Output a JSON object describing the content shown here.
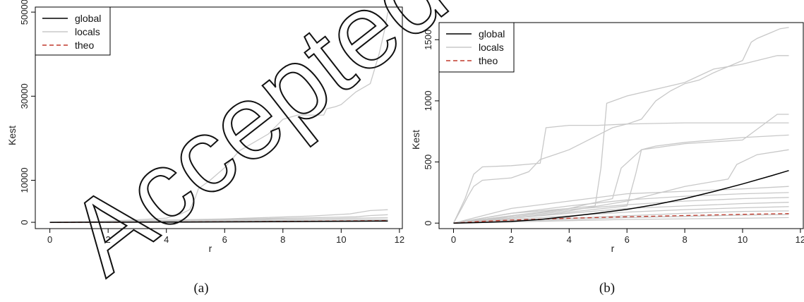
{
  "watermark": "Accepted",
  "panels": [
    {
      "caption": "(a)"
    },
    {
      "caption": "(b)"
    }
  ],
  "chart_data": [
    {
      "type": "line",
      "xlabel": "r",
      "ylabel": "Kest",
      "xlim": [
        -0.5,
        12.1
      ],
      "ylim": [
        -1500,
        51200
      ],
      "xticks": [
        0,
        2,
        4,
        6,
        8,
        10,
        12
      ],
      "yticks": [
        0,
        10000,
        30000,
        50000
      ],
      "legend": {
        "position": "top-left",
        "entries": [
          "global",
          "locals",
          "theo"
        ]
      },
      "colors": {
        "global": "#000000",
        "locals": "#c8c8c8",
        "theo": "#c0392b"
      },
      "series": [
        {
          "name": "global",
          "style": "solid",
          "x": [
            0,
            2,
            4,
            6,
            8,
            10,
            11.6
          ],
          "y": [
            0,
            10,
            40,
            90,
            160,
            250,
            320
          ]
        },
        {
          "name": "theo",
          "style": "dashed",
          "x": [
            0,
            2,
            4,
            6,
            8,
            10,
            11.6
          ],
          "y": [
            0,
            15,
            55,
            120,
            210,
            320,
            420
          ]
        },
        {
          "name": "locals",
          "style": "solid",
          "x": [
            0,
            1,
            2,
            3,
            4,
            4.5,
            4.8,
            5.0,
            5.1,
            5.5,
            6.0,
            6.5,
            7.0,
            7.5,
            8.0,
            8.5,
            9.0,
            9.4,
            9.5,
            9.8,
            10.0,
            10.5,
            11.0,
            11.3,
            11.5,
            11.6
          ],
          "y": [
            0,
            100,
            300,
            600,
            1000,
            2000,
            3000,
            6000,
            8000,
            10000,
            13000,
            17000,
            19000,
            21000,
            24500,
            25500,
            25500,
            25500,
            27000,
            27500,
            28000,
            31000,
            33000,
            40000,
            46000,
            50000
          ]
        },
        {
          "name": "locals",
          "style": "solid",
          "x": [
            0,
            3,
            6,
            9,
            10.3,
            11.0,
            11.6
          ],
          "y": [
            0,
            400,
            800,
            1500,
            2000,
            2800,
            3000
          ]
        },
        {
          "name": "locals",
          "style": "solid",
          "x": [
            0,
            3,
            6,
            9,
            10.5,
            11.0,
            11.6
          ],
          "y": [
            0,
            350,
            700,
            1100,
            1300,
            1600,
            1800
          ]
        },
        {
          "name": "locals",
          "style": "solid",
          "x": [
            0,
            3,
            6,
            9,
            11.6
          ],
          "y": [
            0,
            250,
            500,
            800,
            1100
          ]
        },
        {
          "name": "locals",
          "style": "solid",
          "x": [
            0,
            3,
            6,
            9,
            11.6
          ],
          "y": [
            0,
            150,
            300,
            500,
            700
          ]
        },
        {
          "name": "locals",
          "style": "solid",
          "x": [
            0,
            3,
            6,
            9,
            11.6
          ],
          "y": [
            0,
            100,
            200,
            350,
            450
          ]
        },
        {
          "name": "locals",
          "style": "solid",
          "x": [
            0,
            3,
            6,
            9,
            11.6
          ],
          "y": [
            0,
            60,
            120,
            200,
            260
          ]
        }
      ]
    },
    {
      "type": "line",
      "xlabel": "r",
      "ylabel": "Kest",
      "xlim": [
        -0.5,
        12.1
      ],
      "ylim": [
        -45,
        1640
      ],
      "xticks": [
        0,
        2,
        4,
        6,
        8,
        10,
        12
      ],
      "yticks": [
        0,
        500,
        1000,
        1500
      ],
      "legend": {
        "position": "top-left",
        "entries": [
          "global",
          "locals",
          "theo"
        ]
      },
      "colors": {
        "global": "#000000",
        "locals": "#c8c8c8",
        "theo": "#c0392b"
      },
      "series": [
        {
          "name": "locals",
          "style": "solid",
          "x": [
            0,
            0.3,
            0.5,
            0.7,
            1,
            2,
            2.6,
            3.0,
            3.5,
            4.0,
            4.5,
            5.0,
            5.5,
            6.0,
            6.5,
            7.0,
            7.5,
            8.0,
            8.5,
            9.0,
            9.5,
            10.0,
            10.3,
            10.5,
            11.0,
            11.3,
            11.6
          ],
          "y": [
            0,
            130,
            220,
            300,
            350,
            370,
            420,
            520,
            560,
            600,
            660,
            720,
            780,
            810,
            850,
            1000,
            1080,
            1140,
            1170,
            1230,
            1280,
            1330,
            1480,
            1510,
            1560,
            1590,
            1600
          ]
        },
        {
          "name": "locals",
          "style": "solid",
          "x": [
            0,
            0.4,
            0.7,
            1,
            2,
            3,
            3.2,
            4,
            5,
            6,
            8,
            10,
            11.6
          ],
          "y": [
            0,
            200,
            400,
            460,
            470,
            490,
            780,
            800,
            800,
            810,
            820,
            820,
            820
          ]
        },
        {
          "name": "locals",
          "style": "solid",
          "x": [
            0,
            2,
            4,
            4.9,
            5.1,
            5.3,
            6,
            8,
            9,
            10,
            11.2,
            11.6
          ],
          "y": [
            0,
            80,
            120,
            140,
            450,
            980,
            1040,
            1150,
            1260,
            1300,
            1370,
            1370
          ]
        },
        {
          "name": "locals",
          "style": "solid",
          "x": [
            0,
            2,
            4,
            6,
            6.3,
            6.5,
            7,
            8,
            9,
            10,
            11.6
          ],
          "y": [
            0,
            40,
            90,
            140,
            400,
            600,
            630,
            660,
            680,
            700,
            720
          ]
        },
        {
          "name": "locals",
          "style": "solid",
          "x": [
            0,
            2,
            4,
            5.5,
            5.8,
            6.5,
            8,
            10,
            11.2,
            11.6
          ],
          "y": [
            0,
            60,
            120,
            200,
            450,
            600,
            650,
            680,
            890,
            890
          ]
        },
        {
          "name": "locals",
          "style": "solid",
          "x": [
            0,
            2,
            4,
            6,
            8,
            9.5,
            9.8,
            10.5,
            11.6
          ],
          "y": [
            0,
            50,
            100,
            180,
            300,
            360,
            480,
            560,
            600
          ]
        },
        {
          "name": "locals",
          "style": "solid",
          "x": [
            0,
            2,
            4,
            6,
            8,
            10,
            11.6
          ],
          "y": [
            0,
            120,
            180,
            240,
            260,
            280,
            300
          ]
        },
        {
          "name": "locals",
          "style": "solid",
          "x": [
            0,
            2,
            4,
            6,
            8,
            10,
            11.6
          ],
          "y": [
            0,
            80,
            140,
            190,
            220,
            240,
            250
          ]
        },
        {
          "name": "locals",
          "style": "solid",
          "x": [
            0,
            2,
            4,
            6,
            8,
            10,
            11.6
          ],
          "y": [
            0,
            60,
            110,
            150,
            180,
            200,
            210
          ]
        },
        {
          "name": "locals",
          "style": "solid",
          "x": [
            0,
            2,
            4,
            6,
            8,
            10,
            11.6
          ],
          "y": [
            0,
            40,
            80,
            120,
            140,
            160,
            170
          ]
        },
        {
          "name": "locals",
          "style": "solid",
          "x": [
            0,
            2,
            4,
            6,
            8,
            10,
            11.6
          ],
          "y": [
            0,
            30,
            60,
            90,
            110,
            125,
            135
          ]
        },
        {
          "name": "locals",
          "style": "solid",
          "x": [
            0,
            2,
            4,
            6,
            8,
            10,
            11.6
          ],
          "y": [
            0,
            20,
            40,
            60,
            80,
            95,
            100
          ]
        },
        {
          "name": "locals",
          "style": "solid",
          "x": [
            0,
            2,
            4,
            6,
            8,
            10,
            11.6
          ],
          "y": [
            0,
            15,
            30,
            45,
            55,
            65,
            70
          ]
        },
        {
          "name": "locals",
          "style": "solid",
          "x": [
            0,
            2,
            4,
            6,
            8,
            10,
            11.6
          ],
          "y": [
            0,
            10,
            20,
            30,
            35,
            40,
            45
          ]
        },
        {
          "name": "global",
          "style": "solid",
          "x": [
            0,
            1,
            2,
            3,
            4,
            5,
            6,
            7,
            8,
            9,
            10,
            11,
            11.6
          ],
          "y": [
            0,
            5,
            13,
            30,
            55,
            82,
            112,
            152,
            200,
            258,
            320,
            388,
            430
          ]
        },
        {
          "name": "theo",
          "style": "dashed",
          "x": [
            0,
            1,
            2,
            4,
            6,
            8,
            10,
            11.6
          ],
          "y": [
            0,
            15,
            25,
            40,
            52,
            62,
            72,
            78
          ]
        }
      ]
    }
  ]
}
